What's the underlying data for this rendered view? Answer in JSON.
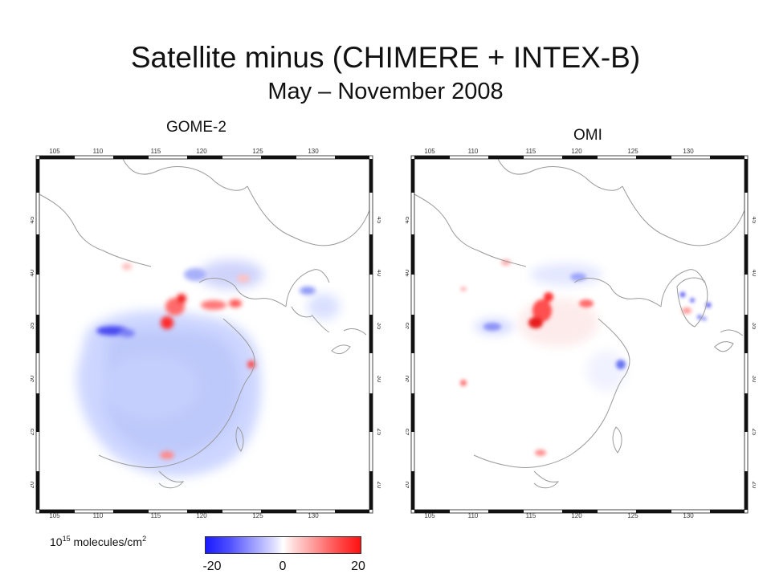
{
  "title": "Satellite minus (CHIMERE + INTEX-B)",
  "subtitle": "May – November 2008",
  "panels": [
    {
      "label": "GOME-2"
    },
    {
      "label": "OMI"
    }
  ],
  "axes": {
    "lon_ticks": [
      "105",
      "110",
      "115",
      "120",
      "125",
      "130"
    ],
    "lat_ticks": [
      "45",
      "40",
      "35",
      "30",
      "25",
      "20"
    ]
  },
  "colorbar": {
    "unit_base": "10",
    "unit_exp": "15",
    "unit_rest": " molecules/cm",
    "unit_sq": "2",
    "ticks": [
      "-20",
      "0",
      "20"
    ],
    "colors": {
      "negative": "#1a1aff",
      "zero": "#ffffff",
      "positive": "#ff1111"
    }
  }
}
